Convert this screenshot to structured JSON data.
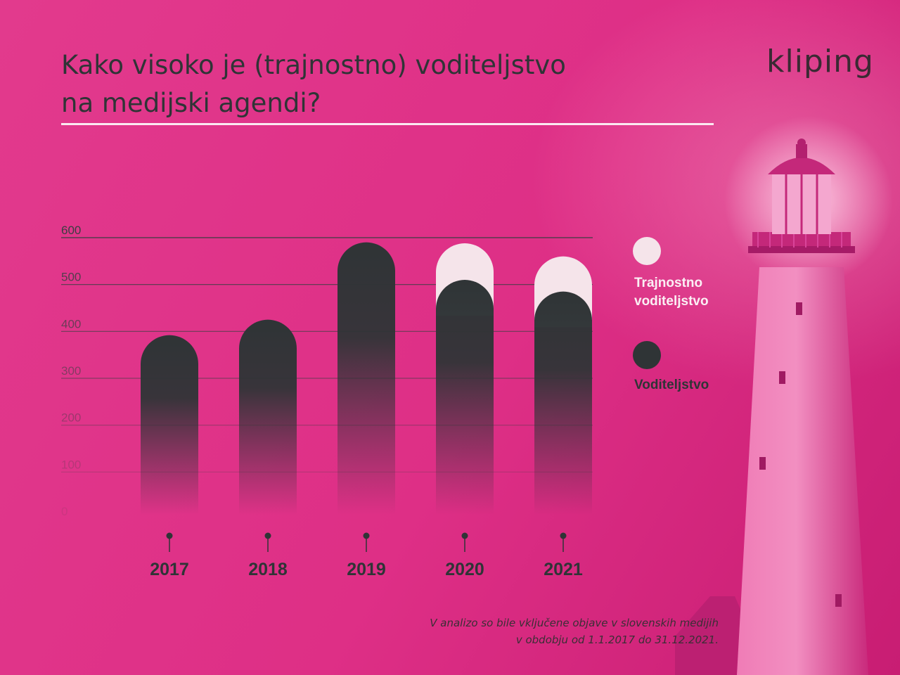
{
  "header": {
    "title_line1": "Kako visoko je (trajnostno) voditeljstvo",
    "title_line2": "na medijski agendi?",
    "logo_text": "kliping"
  },
  "footnote": {
    "line1": "V analizo so bile vključene objave v slovenskih medijih",
    "line2": "v obdobju od 1.1.2017 do 31.12.2021."
  },
  "colors": {
    "background": "#e0378a",
    "voditeljstvo": "#2f3436",
    "trajnostno": "#f5e4ea"
  },
  "chart_data": {
    "type": "bar",
    "categories": [
      "2017",
      "2018",
      "2019",
      "2020",
      "2021"
    ],
    "series": [
      {
        "name": "Trajnostno voditeljstvo",
        "values": [
          0,
          0,
          0,
          78,
          75
        ],
        "color": "#f5e4ea"
      },
      {
        "name": "Voditeljstvo",
        "values": [
          392,
          425,
          590,
          510,
          485
        ],
        "color": "#2f3436"
      }
    ],
    "y_ticks": [
      "0",
      "100",
      "200",
      "300",
      "400",
      "500",
      "600"
    ],
    "ylim": [
      0,
      600
    ],
    "title": "",
    "xlabel": "",
    "ylabel": "",
    "legend": {
      "placement": "right",
      "entries": [
        {
          "line1": "Trajnostno",
          "line2": "voditeljstvo",
          "color": "#f5e4ea",
          "label_color": "#fbeff4"
        },
        {
          "line1": "Voditeljstvo",
          "line2": "",
          "color": "#2f3436",
          "label_color": "#2f3436"
        }
      ]
    }
  }
}
